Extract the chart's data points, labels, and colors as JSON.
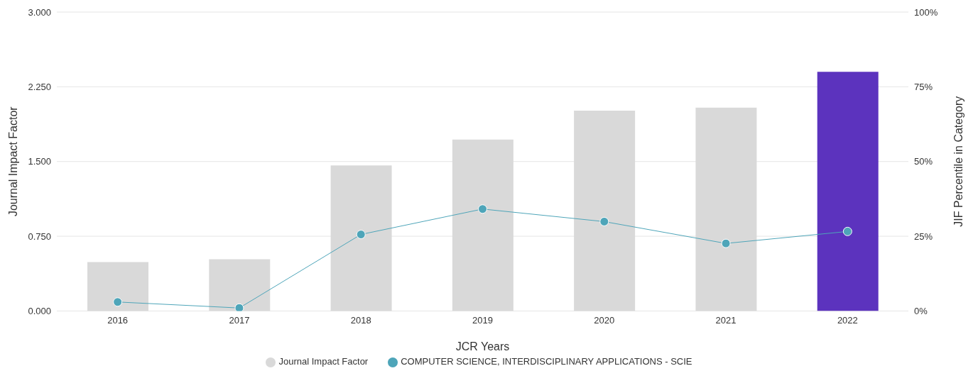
{
  "chart_data": {
    "type": "bar",
    "xlabel": "JCR Years",
    "ylabel": "Journal Impact Factor",
    "y2label": "JIF Percentile in Category",
    "categories": [
      "2016",
      "2017",
      "2018",
      "2019",
      "2020",
      "2021",
      "2022"
    ],
    "series": [
      {
        "name": "Journal Impact Factor",
        "color": "#d9d9d9",
        "colors": [
          "#d9d9d9",
          "#d9d9d9",
          "#d9d9d9",
          "#d9d9d9",
          "#d9d9d9",
          "#d9d9d9",
          "#5c33be"
        ],
        "values": [
          0.49,
          0.52,
          1.46,
          1.72,
          2.01,
          2.04,
          2.4
        ]
      },
      {
        "name": "COMPUTER SCIENCE, INTERDISCIPLINARY APPLICATIONS - SCIE",
        "type": "line",
        "axis": "y2",
        "color": "#4ea5b9",
        "values": [
          3,
          1,
          25.6,
          34.1,
          29.9,
          22.6,
          26.6
        ]
      }
    ],
    "ylim": [
      0,
      3
    ],
    "yticks": [
      {
        "value": 0,
        "label": "0.000"
      },
      {
        "value": 0.75,
        "label": "0.750"
      },
      {
        "value": 1.5,
        "label": "1.500"
      },
      {
        "value": 2.25,
        "label": "2.250"
      },
      {
        "value": 3,
        "label": "3.000"
      }
    ],
    "y2lim": [
      0,
      100
    ],
    "y2ticks": [
      {
        "value": 0,
        "label": "0%"
      },
      {
        "value": 25,
        "label": "25%"
      },
      {
        "value": 50,
        "label": "50%"
      },
      {
        "value": 75,
        "label": "75%"
      },
      {
        "value": 100,
        "label": "100%"
      }
    ],
    "grid": "y",
    "legend": "bottom",
    "marker": "circle"
  }
}
